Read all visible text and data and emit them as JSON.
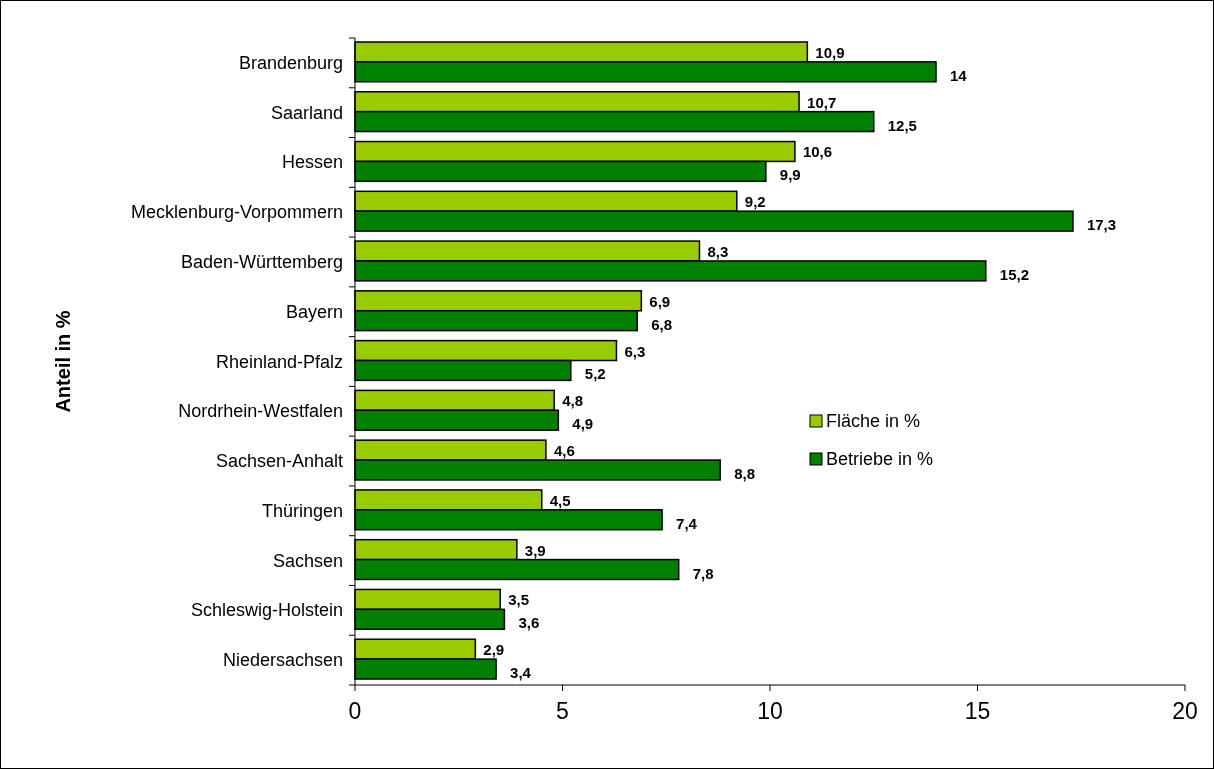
{
  "chart_data": {
    "type": "bar",
    "orientation": "horizontal",
    "ylabel": "Anteil in %",
    "categories": [
      "Brandenburg",
      "Saarland",
      "Hessen",
      "Mecklenburg-Vorpommern",
      "Baden-Württemberg",
      "Bayern",
      "Rheinland-Pfalz",
      "Nordrhein-Westfalen",
      "Sachsen-Anhalt",
      "Thüringen",
      "Sachsen",
      "Schleswig-Holstein",
      "Niedersachsen"
    ],
    "series": [
      {
        "name": "Fläche in %",
        "color": "#99cc00",
        "values": [
          10.9,
          10.7,
          10.6,
          9.2,
          8.3,
          6.9,
          6.3,
          4.8,
          4.6,
          4.5,
          3.9,
          3.5,
          2.9
        ],
        "value_labels": [
          "10,9",
          "10,7",
          "10,6",
          "9,2",
          "8,3",
          "6,9",
          "6,3",
          "4,8",
          "4,6",
          "4,5",
          "3,9",
          "3,5",
          "2,9"
        ]
      },
      {
        "name": "Betriebe in %",
        "color": "#008000",
        "values": [
          14,
          12.5,
          9.9,
          17.3,
          15.2,
          6.8,
          5.2,
          4.9,
          8.8,
          7.4,
          7.8,
          3.6,
          3.4
        ],
        "value_labels": [
          "14",
          "12,5",
          "9,9",
          "17,3",
          "15,2",
          "6,8",
          "5,2",
          "4,9",
          "8,8",
          "7,4",
          "7,8",
          "3,6",
          "3,4"
        ]
      }
    ],
    "xlim": [
      0,
      20
    ],
    "xticks": [
      0,
      5,
      10,
      15,
      20
    ],
    "legend": "right"
  }
}
